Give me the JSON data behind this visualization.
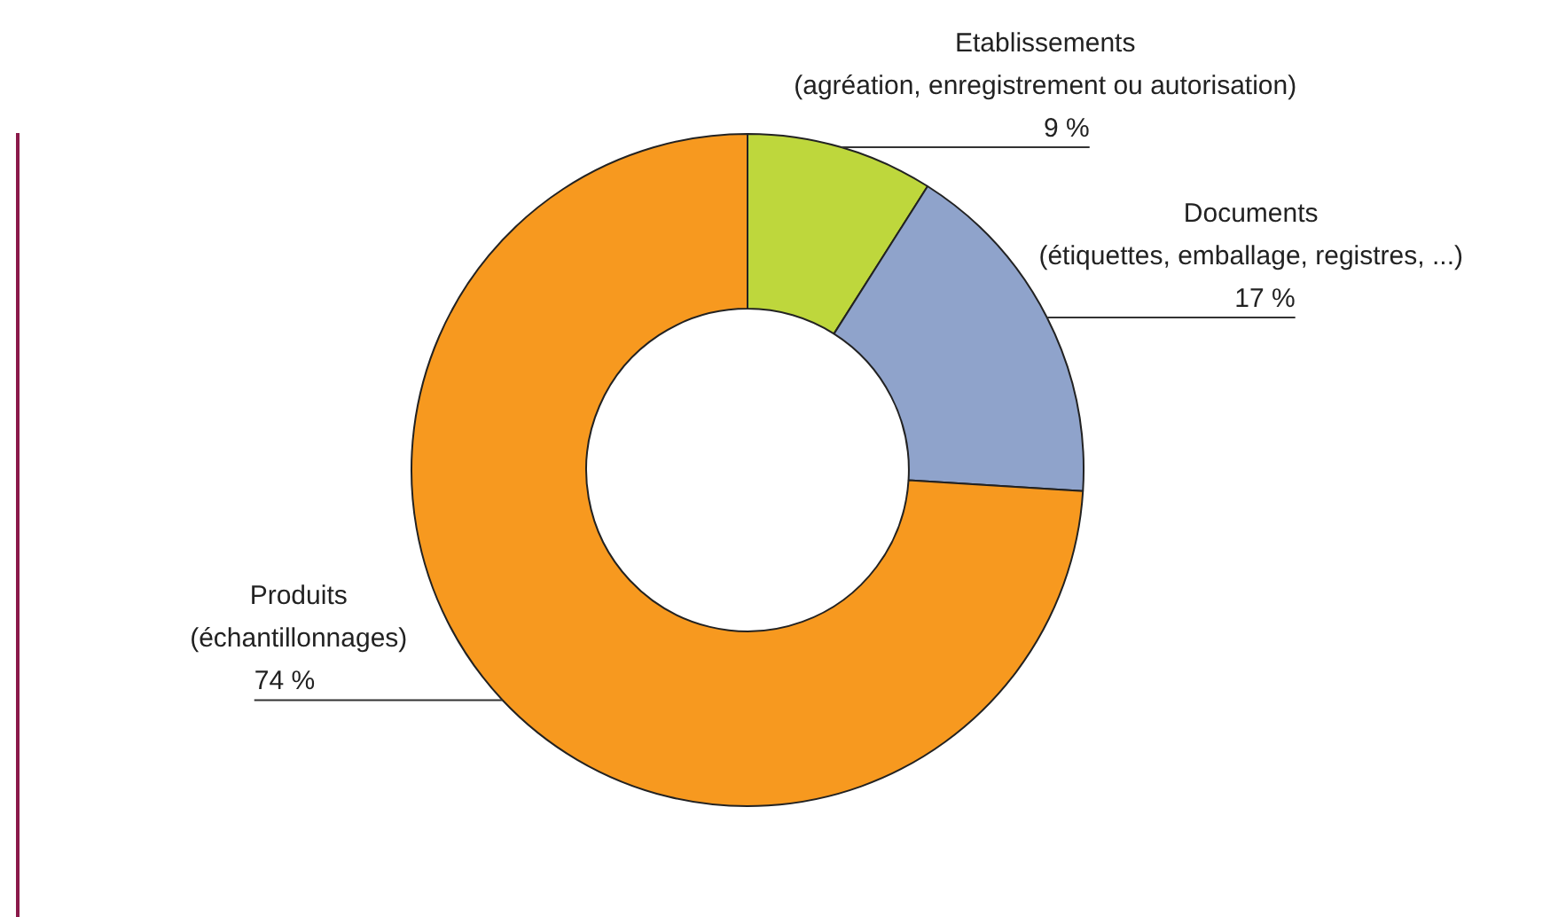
{
  "chart_data": {
    "type": "donut",
    "categories": [
      "Etablissements\n(agréation, enregistrement ou autorisation)",
      "Documents\n(étiquettes, emballage, registres, ...)",
      "Produits\n(échantillonnages)"
    ],
    "values": [
      9,
      17,
      74
    ],
    "value_labels": [
      "9 %",
      "17 %",
      "74 %"
    ],
    "colors": [
      "#bed73c",
      "#8fa3cb",
      "#f7991f"
    ],
    "legend": false
  }
}
